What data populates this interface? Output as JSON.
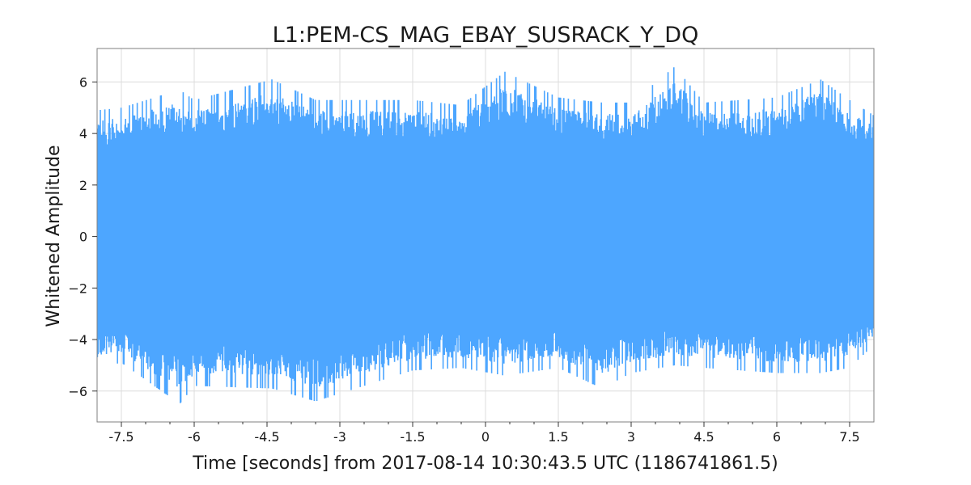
{
  "chart_data": {
    "type": "line",
    "title": "L1:PEM-CS_MAG_EBAY_SUSRACK_Y_DQ",
    "xlabel": "Time [seconds] from 2017-08-14 10:30:43.5 UTC (1186741861.5)",
    "ylabel": "Whitened Amplitude",
    "xlim": [
      -8,
      8
    ],
    "ylim": [
      -7.2,
      7.3
    ],
    "x_ticks": [
      -7.5,
      -6,
      -4.5,
      -3,
      -1.5,
      0,
      1.5,
      3,
      4.5,
      6,
      7.5
    ],
    "x_tick_labels": [
      "-7.5",
      "-6",
      "-4.5",
      "-3",
      "-1.5",
      "0",
      "1.5",
      "3",
      "4.5",
      "6",
      "7.5"
    ],
    "y_ticks": [
      -6,
      -4,
      -2,
      0,
      2,
      4,
      6
    ],
    "y_tick_labels": [
      "−6",
      "−4",
      "−2",
      "0",
      "2",
      "4",
      "6"
    ],
    "grid": true,
    "series": [
      {
        "color": "#4da6ff",
        "description_values": {
          "x": [
            -8.0,
            -7.5,
            -6.3,
            -6.0,
            -4.4,
            -3.5,
            -1.5,
            -0.5,
            0.4,
            1.5,
            2.4,
            3.0,
            3.9,
            4.5,
            6.0,
            6.9,
            7.5,
            8.0
          ],
          "upper_envelope": [
            4.9,
            5.0,
            5.7,
            5.3,
            6.1,
            5.3,
            5.3,
            5.1,
            6.4,
            5.4,
            5.2,
            5.2,
            6.6,
            5.2,
            5.4,
            6.1,
            5.3,
            4.7
          ],
          "lower_envelope": [
            -5.1,
            -4.9,
            -6.5,
            -5.8,
            -5.9,
            -6.4,
            -5.2,
            -5.1,
            -5.4,
            -5.1,
            -5.9,
            -5.3,
            -5.0,
            -5.1,
            -5.3,
            -5.3,
            -5.1,
            -4.2
          ]
        }
      }
    ]
  }
}
